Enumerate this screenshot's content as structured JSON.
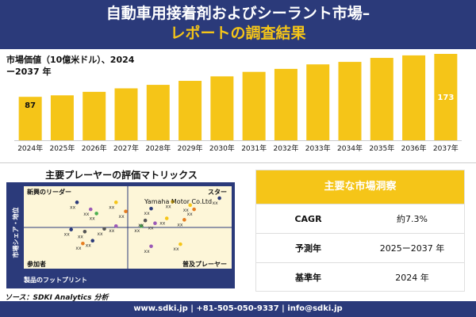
{
  "header": {
    "title_line1": "自動車用接着剤およびシーラント市場–",
    "title_line2": "レポートの調査結果"
  },
  "colors": {
    "navy": "#2b3a7a",
    "gold": "#f5c518",
    "bar_dark": "#e0aa00"
  },
  "chart_data": {
    "type": "bar",
    "ylabel": "市場価値（10億米ドル）、2024ー2037 年",
    "categories": [
      "2024年",
      "2025年",
      "2026年",
      "2027年",
      "2028年",
      "2029年",
      "2030年",
      "2031年",
      "2032年",
      "2033年",
      "2034年",
      "2035年",
      "2036年",
      "2037年"
    ],
    "values": [
      87,
      90,
      97,
      104,
      111,
      119,
      128,
      137,
      143,
      152,
      157,
      165,
      170,
      173
    ],
    "data_labels": [
      {
        "index": 0,
        "text": "87"
      },
      {
        "index": 13,
        "text": "173"
      }
    ]
  },
  "matrix": {
    "title": "主要プレーヤーの評価マトリックス",
    "quadrants": {
      "top_left": "新興のリーダー",
      "top_right": "スター",
      "bottom_left": "参加者",
      "bottom_right": "普及プレーヤー"
    },
    "x_axis_label": "製品のフットプリント",
    "y_axis_label": "市場シェア・地位",
    "highlight_label": "Yamaha Motor Co.Ltd",
    "point_label": "xx",
    "points": [
      {
        "label": "xx",
        "x": 0.24,
        "y": 0.86,
        "color": "#2b3a7a"
      },
      {
        "label": "xx",
        "x": 0.44,
        "y": 0.86,
        "color": "#f5c518"
      },
      {
        "label": "xx",
        "x": 0.73,
        "y": 0.87,
        "color": "#f5c518"
      },
      {
        "label": "xx",
        "x": 0.97,
        "y": 0.92,
        "color": "#2b3a7a"
      },
      {
        "label": "xx",
        "x": 0.31,
        "y": 0.76,
        "color": "#9b59b6"
      },
      {
        "label": "xx",
        "x": 0.34,
        "y": 0.7,
        "color": "#4caf50"
      },
      {
        "label": "xx",
        "x": 0.49,
        "y": 0.73,
        "color": "#e67e22"
      },
      {
        "label": "xx",
        "x": 0.62,
        "y": 0.77,
        "color": "#2b3a7a"
      },
      {
        "label": "xx",
        "x": 0.82,
        "y": 0.82,
        "color": "#f5c518"
      },
      {
        "label": "xx",
        "x": 0.84,
        "y": 0.76,
        "color": "#e67e22"
      },
      {
        "label": "xx",
        "x": 0.21,
        "y": 0.47,
        "color": "#2b3a7a"
      },
      {
        "label": "xx",
        "x": 0.28,
        "y": 0.44,
        "color": "#555555"
      },
      {
        "label": "xx",
        "x": 0.38,
        "y": 0.48,
        "color": "#555555"
      },
      {
        "label": "xx",
        "x": 0.44,
        "y": 0.52,
        "color": "#9b59b6"
      },
      {
        "label": "xx",
        "x": 0.57,
        "y": 0.52,
        "color": "#4caf50"
      },
      {
        "label": "xx",
        "x": 0.59,
        "y": 0.6,
        "color": "#555555"
      },
      {
        "label": "xx",
        "x": 0.64,
        "y": 0.56,
        "color": "#9b59b6"
      },
      {
        "label": "xx",
        "x": 0.7,
        "y": 0.63,
        "color": "#f5c518"
      },
      {
        "label": "xx",
        "x": 0.79,
        "y": 0.61,
        "color": "#e67e22"
      },
      {
        "label": "xx",
        "x": 0.32,
        "y": 0.31,
        "color": "#2b3a7a"
      },
      {
        "label": "xx",
        "x": 0.27,
        "y": 0.27,
        "color": "#e67e22"
      },
      {
        "label": "xx",
        "x": 0.62,
        "y": 0.23,
        "color": "#9b59b6"
      },
      {
        "label": "xx",
        "x": 0.77,
        "y": 0.26,
        "color": "#f5c518"
      }
    ]
  },
  "stats": {
    "header": "主要な市場洞察",
    "rows": [
      {
        "label": "CAGR",
        "value": "約7.3%"
      },
      {
        "label": "予測年",
        "value": "2025ー2037 年"
      },
      {
        "label": "基準年",
        "value": "2024 年"
      }
    ]
  },
  "source": "ソース：SDKI Analytics 分析",
  "footer": "www.sdki.jp | +81-505-050-9337 | info@sdki.jp"
}
